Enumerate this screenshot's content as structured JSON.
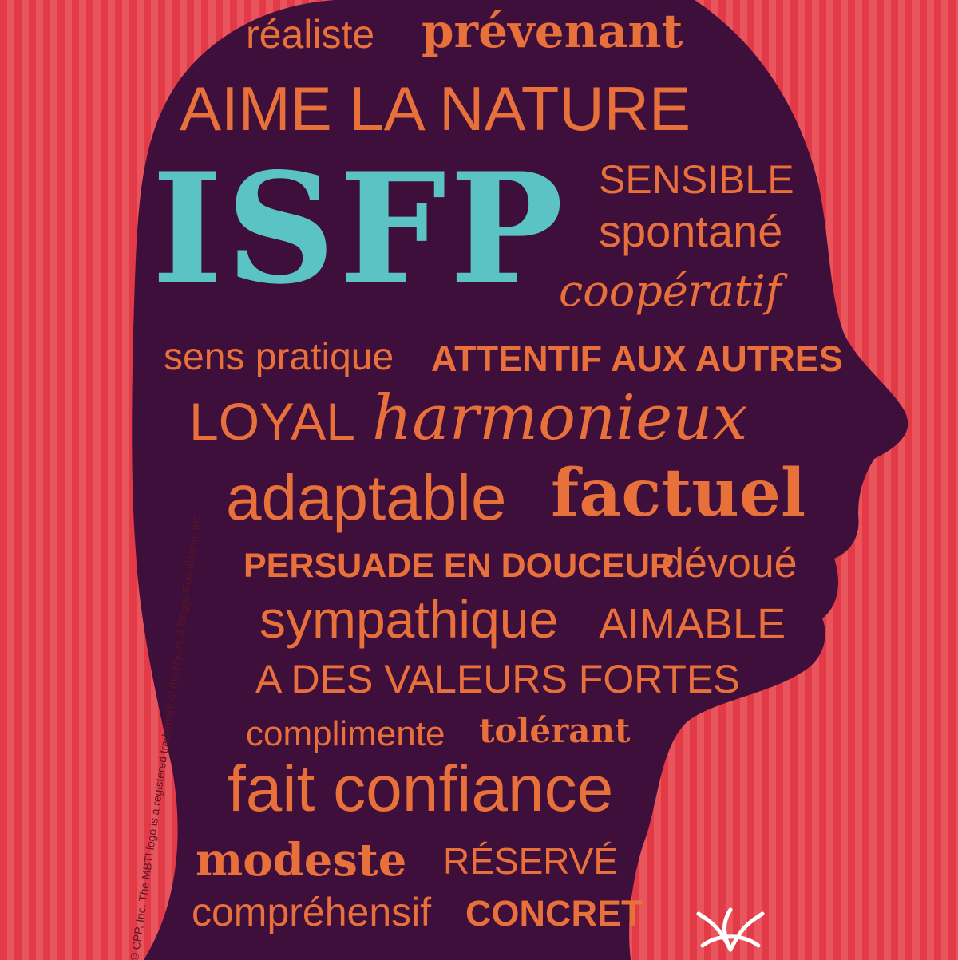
{
  "colors": {
    "stripe_dark": "#e23b47",
    "stripe_light": "#e9555c",
    "head": "#3e0f3a",
    "word": "#e8703a",
    "type_code": "#5cc3c5"
  },
  "type_code": "ISFP",
  "words": {
    "realiste": "réaliste",
    "prevenant": "prévenant",
    "aime_la_nature": "AIME LA NATURE",
    "sensible": "SENSIBLE",
    "spontane": "spontané",
    "cooperatif": "coopératif",
    "sens_pratique": "sens pratique",
    "attentif": "ATTENTIF AUX AUTRES",
    "loyal": "LOYAL",
    "harmonieux": "harmonieux",
    "adaptable": "adaptable",
    "factuel": "factuel",
    "persuade": "PERSUADE EN DOUCEUR",
    "devoue": "dévoué",
    "sympathique": "sympathique",
    "aimable": "AIMABLE",
    "valeurs": "A DES VALEURS FORTES",
    "complimente": "complimente",
    "tolerant": "tolérant",
    "fait_confiance": "fait confiance",
    "modeste": "modeste",
    "reserve": "RÉSERVÉ",
    "comprehensif": "compréhensif",
    "concret": "CONCRET"
  },
  "trademark": "© CPP, Inc. The MBTI logo is a registered trademark of the Myers & Briggs Foundation, Inc.",
  "logo_icon": "mbti-logo-icon"
}
